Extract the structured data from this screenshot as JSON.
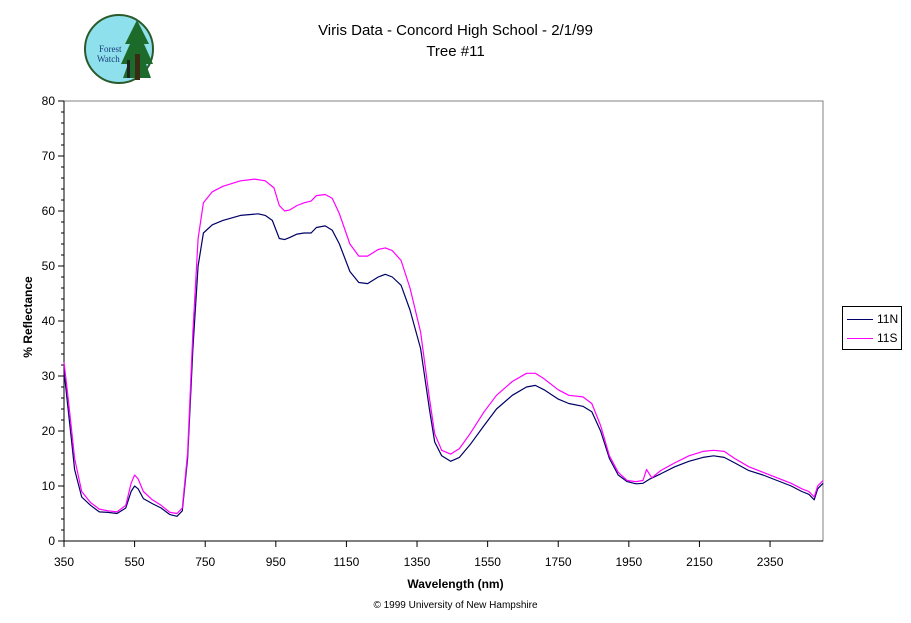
{
  "title": "Viris Data - Concord High School - 2/1/99",
  "subtitle": "Tree #11",
  "logo_text": [
    "Forest",
    "Watch"
  ],
  "copyright": "© 1999 University of New Hampshire",
  "chart_data": {
    "type": "line",
    "title": "Viris Data - Concord High School - 2/1/99",
    "subtitle": "Tree #11",
    "xlabel": "Wavelength (nm)",
    "ylabel": "% Reflectance",
    "xlim": [
      350,
      2500
    ],
    "ylim": [
      0,
      80
    ],
    "xticks": [
      350,
      550,
      750,
      950,
      1150,
      1350,
      1550,
      1750,
      1950,
      2150,
      2350
    ],
    "yticks": [
      0,
      10,
      20,
      30,
      40,
      50,
      60,
      70,
      80
    ],
    "grid": false,
    "legend_position": "right",
    "series": [
      {
        "name": "11N",
        "color": "#000066",
        "points": [
          [
            350,
            31
          ],
          [
            360,
            25
          ],
          [
            370,
            19
          ],
          [
            380,
            13
          ],
          [
            400,
            8
          ],
          [
            425,
            6.5
          ],
          [
            450,
            5.3
          ],
          [
            475,
            5.2
          ],
          [
            500,
            5
          ],
          [
            525,
            6
          ],
          [
            540,
            9
          ],
          [
            550,
            10
          ],
          [
            560,
            9.5
          ],
          [
            575,
            7.7
          ],
          [
            600,
            6.8
          ],
          [
            625,
            6
          ],
          [
            650,
            4.8
          ],
          [
            670,
            4.5
          ],
          [
            685,
            5.5
          ],
          [
            700,
            15
          ],
          [
            715,
            35
          ],
          [
            730,
            50
          ],
          [
            745,
            56
          ],
          [
            770,
            57.5
          ],
          [
            800,
            58.3
          ],
          [
            850,
            59.2
          ],
          [
            900,
            59.5
          ],
          [
            920,
            59.2
          ],
          [
            940,
            58.3
          ],
          [
            960,
            55
          ],
          [
            975,
            54.8
          ],
          [
            990,
            55.2
          ],
          [
            1010,
            55.8
          ],
          [
            1030,
            56
          ],
          [
            1050,
            56
          ],
          [
            1065,
            57
          ],
          [
            1090,
            57.3
          ],
          [
            1110,
            56.5
          ],
          [
            1130,
            54
          ],
          [
            1160,
            49
          ],
          [
            1185,
            47
          ],
          [
            1210,
            46.8
          ],
          [
            1240,
            48
          ],
          [
            1260,
            48.5
          ],
          [
            1280,
            48
          ],
          [
            1305,
            46.5
          ],
          [
            1330,
            42
          ],
          [
            1360,
            35
          ],
          [
            1385,
            24
          ],
          [
            1400,
            18
          ],
          [
            1420,
            15.5
          ],
          [
            1445,
            14.5
          ],
          [
            1470,
            15.2
          ],
          [
            1500,
            17.5
          ],
          [
            1540,
            21
          ],
          [
            1575,
            24
          ],
          [
            1620,
            26.5
          ],
          [
            1660,
            28
          ],
          [
            1685,
            28.3
          ],
          [
            1710,
            27.5
          ],
          [
            1750,
            25.8
          ],
          [
            1780,
            25
          ],
          [
            1820,
            24.5
          ],
          [
            1845,
            23.5
          ],
          [
            1870,
            20
          ],
          [
            1895,
            15
          ],
          [
            1920,
            12
          ],
          [
            1945,
            10.8
          ],
          [
            1970,
            10.4
          ],
          [
            1990,
            10.5
          ],
          [
            2010,
            11.3
          ],
          [
            2040,
            12.2
          ],
          [
            2080,
            13.5
          ],
          [
            2120,
            14.5
          ],
          [
            2160,
            15.2
          ],
          [
            2190,
            15.5
          ],
          [
            2220,
            15.2
          ],
          [
            2250,
            14.2
          ],
          [
            2290,
            12.8
          ],
          [
            2330,
            12
          ],
          [
            2370,
            11
          ],
          [
            2410,
            10
          ],
          [
            2440,
            9
          ],
          [
            2460,
            8.5
          ],
          [
            2475,
            7.5
          ],
          [
            2485,
            9.5
          ],
          [
            2500,
            10.5
          ]
        ]
      },
      {
        "name": "11S",
        "color": "#ff00ff",
        "points": [
          [
            350,
            32.5
          ],
          [
            360,
            27
          ],
          [
            370,
            21
          ],
          [
            380,
            15
          ],
          [
            400,
            9
          ],
          [
            425,
            7
          ],
          [
            450,
            5.8
          ],
          [
            475,
            5.5
          ],
          [
            500,
            5.3
          ],
          [
            525,
            6.5
          ],
          [
            540,
            10.5
          ],
          [
            550,
            12
          ],
          [
            560,
            11.3
          ],
          [
            575,
            9
          ],
          [
            600,
            7.5
          ],
          [
            625,
            6.5
          ],
          [
            650,
            5.2
          ],
          [
            670,
            5
          ],
          [
            685,
            6
          ],
          [
            700,
            16
          ],
          [
            715,
            38
          ],
          [
            730,
            55
          ],
          [
            745,
            61.5
          ],
          [
            770,
            63.5
          ],
          [
            800,
            64.5
          ],
          [
            850,
            65.5
          ],
          [
            890,
            65.8
          ],
          [
            920,
            65.5
          ],
          [
            945,
            64.2
          ],
          [
            960,
            61
          ],
          [
            975,
            60
          ],
          [
            990,
            60.2
          ],
          [
            1010,
            61
          ],
          [
            1030,
            61.5
          ],
          [
            1050,
            61.8
          ],
          [
            1065,
            62.8
          ],
          [
            1090,
            63
          ],
          [
            1110,
            62.3
          ],
          [
            1130,
            59.5
          ],
          [
            1160,
            54
          ],
          [
            1185,
            51.8
          ],
          [
            1210,
            51.8
          ],
          [
            1240,
            53
          ],
          [
            1260,
            53.3
          ],
          [
            1280,
            52.8
          ],
          [
            1305,
            51
          ],
          [
            1330,
            46
          ],
          [
            1360,
            38
          ],
          [
            1385,
            26
          ],
          [
            1400,
            19.5
          ],
          [
            1420,
            16.5
          ],
          [
            1445,
            15.8
          ],
          [
            1470,
            16.8
          ],
          [
            1500,
            19.5
          ],
          [
            1540,
            23.5
          ],
          [
            1575,
            26.5
          ],
          [
            1620,
            29
          ],
          [
            1660,
            30.5
          ],
          [
            1685,
            30.5
          ],
          [
            1710,
            29.5
          ],
          [
            1750,
            27.5
          ],
          [
            1780,
            26.5
          ],
          [
            1820,
            26.2
          ],
          [
            1845,
            25
          ],
          [
            1870,
            21
          ],
          [
            1895,
            15.5
          ],
          [
            1920,
            12.5
          ],
          [
            1945,
            11
          ],
          [
            1970,
            10.8
          ],
          [
            1990,
            11
          ],
          [
            2000,
            13
          ],
          [
            2015,
            11.5
          ],
          [
            2040,
            12.8
          ],
          [
            2080,
            14.2
          ],
          [
            2120,
            15.5
          ],
          [
            2160,
            16.3
          ],
          [
            2190,
            16.5
          ],
          [
            2220,
            16.3
          ],
          [
            2250,
            15
          ],
          [
            2290,
            13.5
          ],
          [
            2330,
            12.5
          ],
          [
            2370,
            11.5
          ],
          [
            2410,
            10.5
          ],
          [
            2440,
            9.5
          ],
          [
            2460,
            9
          ],
          [
            2475,
            8
          ],
          [
            2485,
            10
          ],
          [
            2500,
            11
          ]
        ]
      }
    ]
  }
}
